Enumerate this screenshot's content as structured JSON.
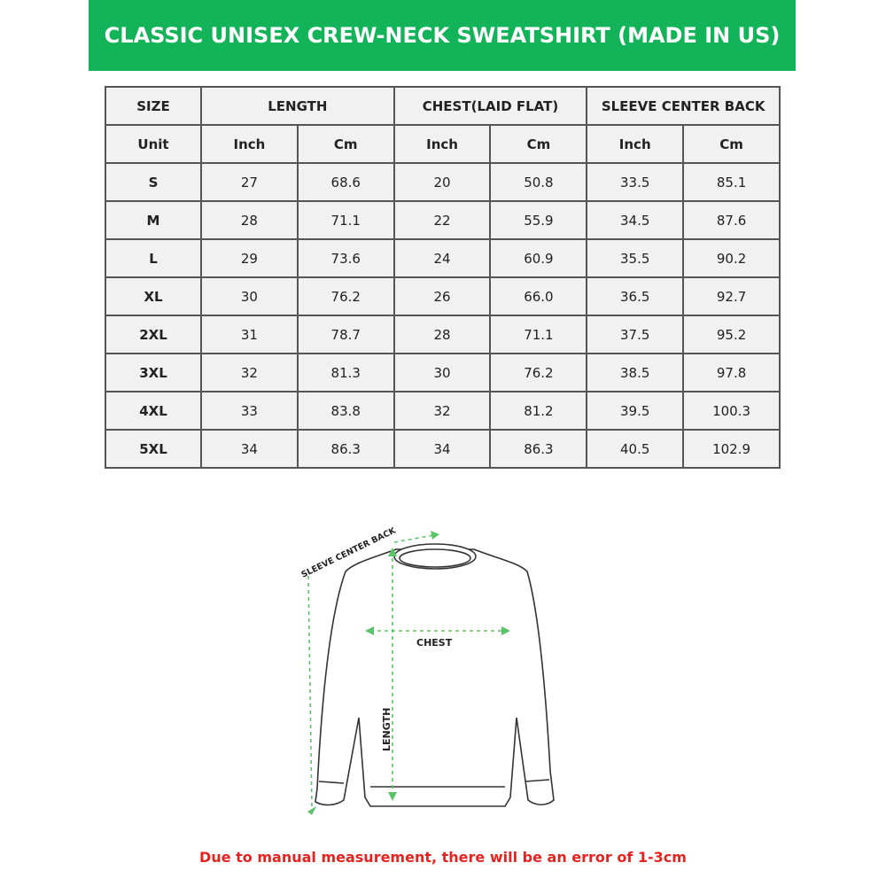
{
  "header": {
    "title": "CLASSIC UNISEX CREW-NECK SWEATSHIRT (MADE IN US)"
  },
  "table": {
    "header": [
      "SIZE",
      "LENGTH",
      "CHEST(LAID FLAT)",
      "SLEEVE CENTER BACK"
    ],
    "units": [
      "Unit",
      "Inch",
      "Cm",
      "Inch",
      "Cm",
      "Inch",
      "Cm"
    ],
    "rows": [
      [
        "S",
        "27",
        "68.6",
        "20",
        "50.8",
        "33.5",
        "85.1"
      ],
      [
        "M",
        "28",
        "71.1",
        "22",
        "55.9",
        "34.5",
        "87.6"
      ],
      [
        "L",
        "29",
        "73.6",
        "24",
        "60.9",
        "35.5",
        "90.2"
      ],
      [
        "XL",
        "30",
        "76.2",
        "26",
        "66.0",
        "36.5",
        "92.7"
      ],
      [
        "2XL",
        "31",
        "78.7",
        "28",
        "71.1",
        "37.5",
        "95.2"
      ],
      [
        "3XL",
        "32",
        "81.3",
        "30",
        "76.2",
        "38.5",
        "97.8"
      ],
      [
        "4XL",
        "33",
        "83.8",
        "32",
        "81.2",
        "39.5",
        "100.3"
      ],
      [
        "5XL",
        "34",
        "86.3",
        "34",
        "86.3",
        "40.5",
        "102.9"
      ]
    ]
  },
  "diagram": {
    "sleeve_label": "SLEEVE CENTER BACK",
    "chest_label": "CHEST",
    "length_label": "LENGTH"
  },
  "footnote": "Due to manual measurement, there will be an error of 1-3cm"
}
